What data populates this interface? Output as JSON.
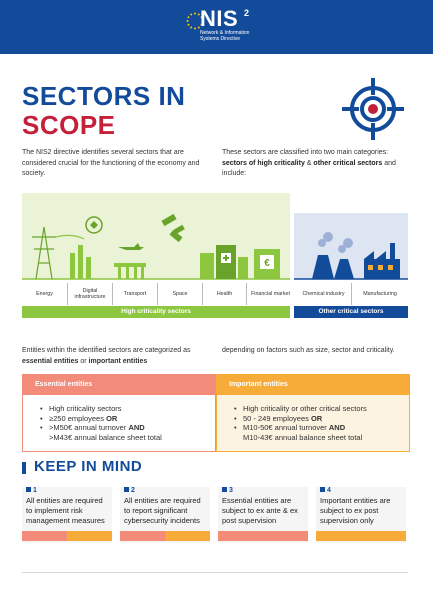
{
  "header": {
    "logo_name": "NIS",
    "logo_sup": "2",
    "logo_sub_line1": "Network & Information",
    "logo_sub_line2": "Systems Directive"
  },
  "title": {
    "line1": "SECTORS IN",
    "line2": "SCOPE"
  },
  "intro": {
    "left": "The NIS2 directive identifies several sectors that are considered crucial for the functioning of the economy and society.",
    "right_prefix": "These sectors are classified into two main categories: ",
    "right_bold1": "sectors of high criticality",
    "right_amp": " & ",
    "right_bold2": "other critical sectors",
    "right_suffix": " and include:"
  },
  "sectors": {
    "high": [
      "Energy",
      "Digital infrastructure",
      "Transport",
      "Space",
      "Health",
      "Financial market"
    ],
    "other": [
      "Chemical industry",
      "Manufacturing"
    ],
    "high_label": "High criticality sectors",
    "other_label": "Other critical sectors"
  },
  "categorize": {
    "left_prefix": "Entities within the identified sectors are categorized as ",
    "left_bold1": "essential entities",
    "left_or": " or ",
    "left_bold2": "important entities",
    "right": "depending on factors such as size, sector and criticality."
  },
  "essential": {
    "title": "Essential entities",
    "item1": "High criticality sectors",
    "item2_prefix": "≥250 employees ",
    "item2_bold": "OR",
    "item3_line1_prefix": ">M50€ annual turnover ",
    "item3_line1_bold": "AND",
    "item3_line2": ">M43€ annual balance sheet total"
  },
  "important": {
    "title": "Important entities",
    "item1": "High criticality or other critical sectors",
    "item2_prefix": "50 - 249 employees ",
    "item2_bold": "OR",
    "item3_line1_prefix": "M10-50€ annual turnover ",
    "item3_line1_bold": "AND",
    "item3_line2": "M10-43€ annual balance sheet total"
  },
  "keep_in_mind": {
    "title": "KEEP IN MIND",
    "items": [
      {
        "num": "1",
        "text": "All entities are required to implement risk management measures"
      },
      {
        "num": "2",
        "text": "All entities are required to report significant cybersecurity incidents"
      },
      {
        "num": "3",
        "text": "Essential entities are subject to ex ante & ex post supervision"
      },
      {
        "num": "4",
        "text": "Important entities are subject to ex post supervision only"
      }
    ]
  },
  "colors": {
    "blue": "#134b9b",
    "red": "#c4203a",
    "green": "#8dc63f",
    "salmon": "#f28b7a",
    "orange": "#f7ac3a"
  }
}
